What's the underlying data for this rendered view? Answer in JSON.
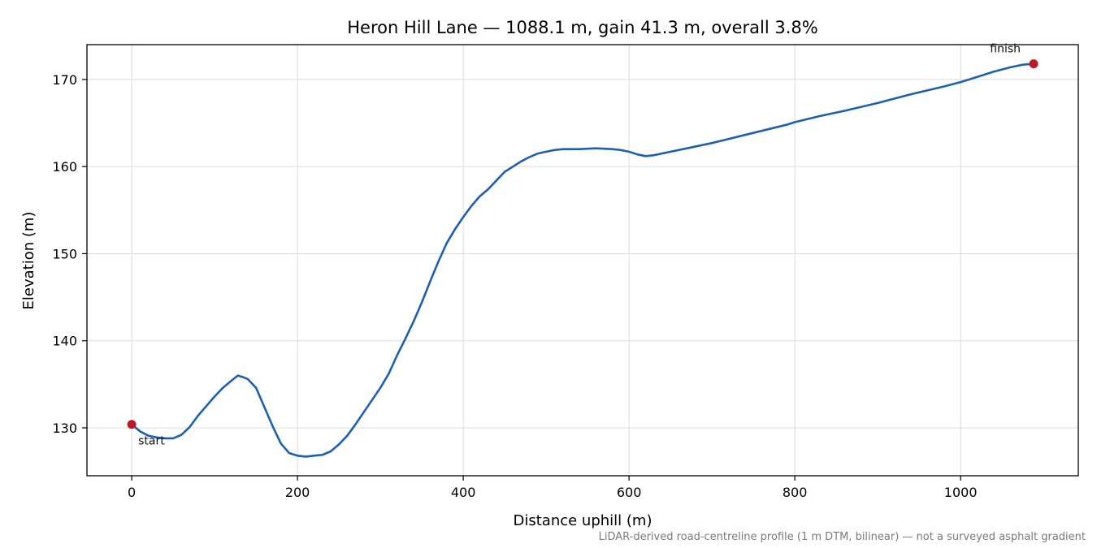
{
  "chart_data": {
    "type": "line",
    "title": "Heron Hill Lane — 1088.1 m, gain 41.3 m, overall 3.8%",
    "xlabel": "Distance uphill (m)",
    "ylabel": "Elevation (m)",
    "footnote": "LiDAR-derived road-centreline profile (1 m DTM, bilinear) — not a surveyed asphalt gradient",
    "xlim": [
      -54,
      1142
    ],
    "ylim": [
      124.5,
      174.0
    ],
    "xticks": [
      0,
      200,
      400,
      600,
      800,
      1000
    ],
    "yticks": [
      130,
      140,
      150,
      160,
      170
    ],
    "grid": true,
    "line_color": "#1f5fb0",
    "marker_color": "#c0182a",
    "series": [
      {
        "x": [
          0,
          10,
          20,
          30,
          40,
          50,
          60,
          70,
          80,
          90,
          100,
          110,
          120,
          128,
          135,
          140,
          150,
          160,
          170,
          180,
          190,
          200,
          210,
          220,
          230,
          240,
          250,
          260,
          270,
          280,
          290,
          300,
          310,
          320,
          330,
          340,
          350,
          360,
          370,
          380,
          390,
          400,
          410,
          420,
          430,
          440,
          450,
          460,
          470,
          480,
          490,
          500,
          510,
          520,
          540,
          560,
          580,
          590,
          600,
          610,
          620,
          630,
          650,
          670,
          700,
          730,
          760,
          790,
          800,
          830,
          860,
          900,
          940,
          980,
          1000,
          1020,
          1040,
          1060,
          1075,
          1088.1
        ],
        "values": [
          130.4,
          129.6,
          129.1,
          128.9,
          128.8,
          128.8,
          129.2,
          130.1,
          131.4,
          132.5,
          133.6,
          134.6,
          135.4,
          136.0,
          135.8,
          135.6,
          134.6,
          132.4,
          130.2,
          128.2,
          127.1,
          126.8,
          126.7,
          126.8,
          126.9,
          127.3,
          128.1,
          129.1,
          130.4,
          131.8,
          133.2,
          134.6,
          136.2,
          138.3,
          140.2,
          142.2,
          144.4,
          146.8,
          149.1,
          151.2,
          152.8,
          154.2,
          155.5,
          156.6,
          157.4,
          158.4,
          159.4,
          160.0,
          160.6,
          161.1,
          161.5,
          161.7,
          161.9,
          162.0,
          162.0,
          162.1,
          162.0,
          161.9,
          161.7,
          161.4,
          161.2,
          161.3,
          161.7,
          162.1,
          162.7,
          163.4,
          164.1,
          164.8,
          165.1,
          165.8,
          166.4,
          167.3,
          168.3,
          169.2,
          169.7,
          170.3,
          170.9,
          171.4,
          171.7,
          171.8
        ]
      }
    ],
    "annotations": [
      {
        "text": "start",
        "x": 0,
        "y": 130.4
      },
      {
        "text": "finish",
        "x": 1088.1,
        "y": 171.8
      }
    ]
  }
}
